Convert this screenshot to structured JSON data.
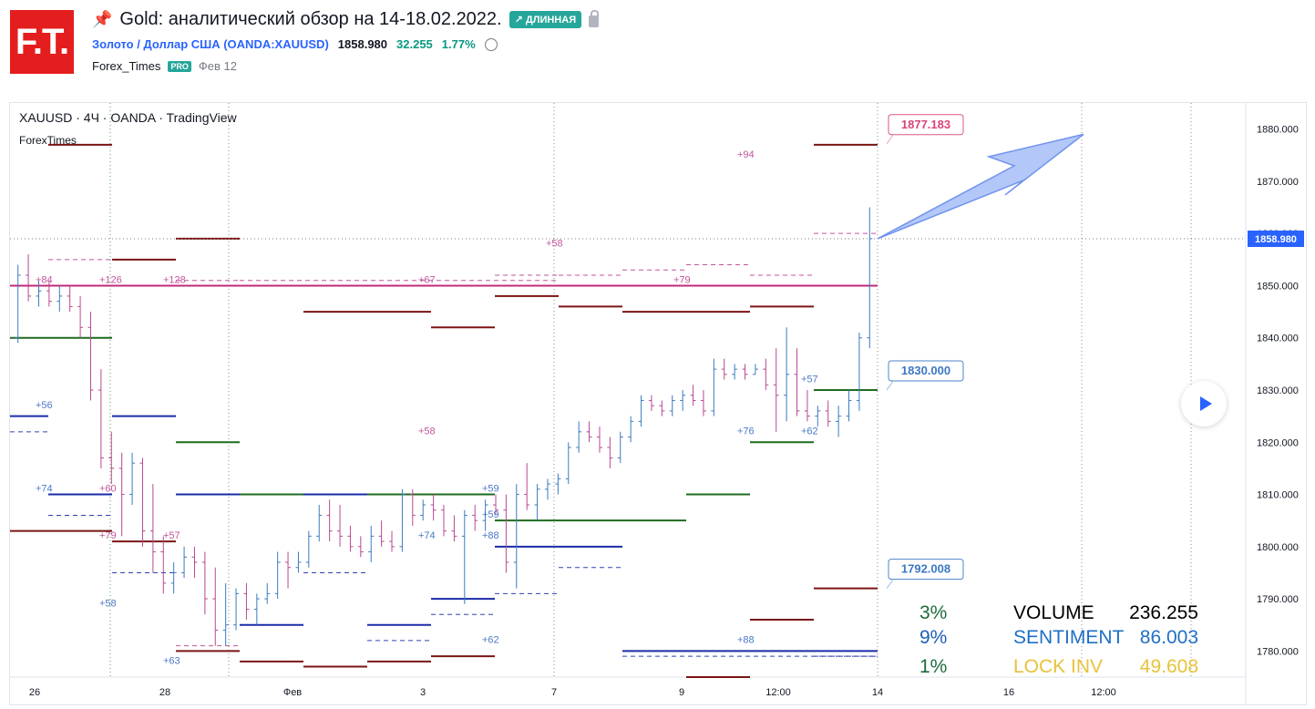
{
  "header": {
    "logo_text": "F.T.",
    "pin_icon": "pin-icon",
    "title": "Gold: аналитический обзор на 14-18.02.2022.",
    "direction_badge": "↗ ДЛИННАЯ",
    "symbol_name": "Золото / Доллар США (OANDA:XAUUSD)",
    "last_price": "1858.980",
    "change": "32.255",
    "change_pct": "1.77%",
    "author": "Forex_Times",
    "author_badge": "PRO",
    "publish_date": "Фев 12"
  },
  "chart_data": {
    "type": "candlestick",
    "legend_symbol": "XAUUSD · 4Ч · OANDA · TradingView",
    "legend_indicator": "ForexTimes",
    "y_range": [
      1775,
      1885
    ],
    "y_ticks": [
      "1880.000",
      "1870.000",
      "1860.000",
      "1850.000",
      "1840.000",
      "1830.000",
      "1820.000",
      "1810.000",
      "1800.000",
      "1790.000",
      "1780.000"
    ],
    "x_ticks": [
      "26",
      "28",
      "Фев",
      "3",
      "7",
      "9",
      "12:00",
      "14",
      "16",
      "12:00"
    ],
    "current_price_label": "1858.980",
    "current_price": 1858.98,
    "callouts": [
      {
        "label": "1877.183",
        "price": 1877.183,
        "color": "#d9447a"
      },
      {
        "label": "1830.000",
        "price": 1830.0,
        "color": "#3b78c4"
      },
      {
        "label": "1792.008",
        "price": 1792.008,
        "color": "#3b78c4"
      }
    ],
    "arrow": {
      "direction": "up",
      "from_price": 1859,
      "to_price": 1879
    },
    "candles": [
      {
        "o": 1840,
        "h": 1854,
        "l": 1839,
        "c": 1852
      },
      {
        "o": 1852,
        "h": 1856,
        "l": 1847,
        "c": 1848
      },
      {
        "o": 1848,
        "h": 1851,
        "l": 1846,
        "c": 1849
      },
      {
        "o": 1849,
        "h": 1851,
        "l": 1846,
        "c": 1847
      },
      {
        "o": 1847,
        "h": 1850,
        "l": 1845,
        "c": 1848
      },
      {
        "o": 1848,
        "h": 1850,
        "l": 1845,
        "c": 1846
      },
      {
        "o": 1846,
        "h": 1848,
        "l": 1840,
        "c": 1842
      },
      {
        "o": 1842,
        "h": 1845,
        "l": 1828,
        "c": 1830
      },
      {
        "o": 1830,
        "h": 1834,
        "l": 1815,
        "c": 1817
      },
      {
        "o": 1817,
        "h": 1822,
        "l": 1812,
        "c": 1815
      },
      {
        "o": 1815,
        "h": 1818,
        "l": 1802,
        "c": 1810
      },
      {
        "o": 1810,
        "h": 1818,
        "l": 1808,
        "c": 1816
      },
      {
        "o": 1816,
        "h": 1817,
        "l": 1800,
        "c": 1803
      },
      {
        "o": 1803,
        "h": 1812,
        "l": 1795,
        "c": 1799
      },
      {
        "o": 1799,
        "h": 1802,
        "l": 1791,
        "c": 1793
      },
      {
        "o": 1793,
        "h": 1797,
        "l": 1791,
        "c": 1795
      },
      {
        "o": 1795,
        "h": 1800,
        "l": 1794,
        "c": 1798
      },
      {
        "o": 1798,
        "h": 1800,
        "l": 1794,
        "c": 1797
      },
      {
        "o": 1797,
        "h": 1799,
        "l": 1787,
        "c": 1790
      },
      {
        "o": 1790,
        "h": 1796,
        "l": 1781,
        "c": 1784
      },
      {
        "o": 1784,
        "h": 1793,
        "l": 1781,
        "c": 1785
      },
      {
        "o": 1785,
        "h": 1792,
        "l": 1784,
        "c": 1791
      },
      {
        "o": 1791,
        "h": 1793,
        "l": 1786,
        "c": 1788
      },
      {
        "o": 1788,
        "h": 1791,
        "l": 1785,
        "c": 1790
      },
      {
        "o": 1790,
        "h": 1793,
        "l": 1789,
        "c": 1791
      },
      {
        "o": 1791,
        "h": 1799,
        "l": 1790,
        "c": 1797
      },
      {
        "o": 1797,
        "h": 1799,
        "l": 1792,
        "c": 1796
      },
      {
        "o": 1796,
        "h": 1799,
        "l": 1795,
        "c": 1797
      },
      {
        "o": 1797,
        "h": 1803,
        "l": 1796,
        "c": 1802
      },
      {
        "o": 1802,
        "h": 1808,
        "l": 1801,
        "c": 1806
      },
      {
        "o": 1806,
        "h": 1809,
        "l": 1801,
        "c": 1803
      },
      {
        "o": 1803,
        "h": 1808,
        "l": 1800,
        "c": 1802
      },
      {
        "o": 1802,
        "h": 1804,
        "l": 1799,
        "c": 1800
      },
      {
        "o": 1800,
        "h": 1802,
        "l": 1798,
        "c": 1799
      },
      {
        "o": 1799,
        "h": 1804,
        "l": 1797,
        "c": 1802
      },
      {
        "o": 1802,
        "h": 1805,
        "l": 1800,
        "c": 1801
      },
      {
        "o": 1801,
        "h": 1803,
        "l": 1799,
        "c": 1800
      },
      {
        "o": 1800,
        "h": 1811,
        "l": 1799,
        "c": 1810
      },
      {
        "o": 1810,
        "h": 1811,
        "l": 1804,
        "c": 1806
      },
      {
        "o": 1806,
        "h": 1809,
        "l": 1805,
        "c": 1808
      },
      {
        "o": 1808,
        "h": 1810,
        "l": 1805,
        "c": 1807
      },
      {
        "o": 1807,
        "h": 1808,
        "l": 1802,
        "c": 1803
      },
      {
        "o": 1803,
        "h": 1806,
        "l": 1801,
        "c": 1802
      },
      {
        "o": 1802,
        "h": 1807,
        "l": 1789,
        "c": 1806
      },
      {
        "o": 1806,
        "h": 1808,
        "l": 1803,
        "c": 1805
      },
      {
        "o": 1805,
        "h": 1809,
        "l": 1803,
        "c": 1808
      },
      {
        "o": 1808,
        "h": 1810,
        "l": 1806,
        "c": 1807
      },
      {
        "o": 1807,
        "h": 1810,
        "l": 1795,
        "c": 1797
      },
      {
        "o": 1797,
        "h": 1812,
        "l": 1792,
        "c": 1810
      },
      {
        "o": 1810,
        "h": 1816,
        "l": 1807,
        "c": 1808
      },
      {
        "o": 1808,
        "h": 1812,
        "l": 1805,
        "c": 1811
      },
      {
        "o": 1811,
        "h": 1813,
        "l": 1809,
        "c": 1812
      },
      {
        "o": 1812,
        "h": 1814,
        "l": 1810,
        "c": 1813
      },
      {
        "o": 1813,
        "h": 1820,
        "l": 1812,
        "c": 1819
      },
      {
        "o": 1819,
        "h": 1824,
        "l": 1818,
        "c": 1822
      },
      {
        "o": 1822,
        "h": 1824,
        "l": 1820,
        "c": 1821
      },
      {
        "o": 1821,
        "h": 1823,
        "l": 1818,
        "c": 1819
      },
      {
        "o": 1819,
        "h": 1821,
        "l": 1815,
        "c": 1817
      },
      {
        "o": 1817,
        "h": 1822,
        "l": 1816,
        "c": 1821
      },
      {
        "o": 1821,
        "h": 1825,
        "l": 1820,
        "c": 1824
      },
      {
        "o": 1824,
        "h": 1829,
        "l": 1823,
        "c": 1828
      },
      {
        "o": 1828,
        "h": 1829,
        "l": 1826,
        "c": 1827
      },
      {
        "o": 1827,
        "h": 1828,
        "l": 1825,
        "c": 1826
      },
      {
        "o": 1826,
        "h": 1829,
        "l": 1825,
        "c": 1828
      },
      {
        "o": 1828,
        "h": 1830,
        "l": 1826,
        "c": 1829
      },
      {
        "o": 1829,
        "h": 1831,
        "l": 1827,
        "c": 1828
      },
      {
        "o": 1828,
        "h": 1830,
        "l": 1825,
        "c": 1826
      },
      {
        "o": 1826,
        "h": 1836,
        "l": 1825,
        "c": 1834
      },
      {
        "o": 1834,
        "h": 1836,
        "l": 1832,
        "c": 1833
      },
      {
        "o": 1833,
        "h": 1835,
        "l": 1832,
        "c": 1834
      },
      {
        "o": 1834,
        "h": 1835,
        "l": 1832,
        "c": 1833
      },
      {
        "o": 1833,
        "h": 1835,
        "l": 1833,
        "c": 1834
      },
      {
        "o": 1834,
        "h": 1836,
        "l": 1830,
        "c": 1831
      },
      {
        "o": 1831,
        "h": 1838,
        "l": 1822,
        "c": 1829
      },
      {
        "o": 1829,
        "h": 1842,
        "l": 1824,
        "c": 1833
      },
      {
        "o": 1833,
        "h": 1838,
        "l": 1825,
        "c": 1826
      },
      {
        "o": 1826,
        "h": 1830,
        "l": 1824,
        "c": 1825
      },
      {
        "o": 1825,
        "h": 1827,
        "l": 1823,
        "c": 1826
      },
      {
        "o": 1826,
        "h": 1828,
        "l": 1823,
        "c": 1824
      },
      {
        "o": 1824,
        "h": 1827,
        "l": 1821,
        "c": 1825
      },
      {
        "o": 1825,
        "h": 1830,
        "l": 1824,
        "c": 1828
      },
      {
        "o": 1828,
        "h": 1841,
        "l": 1826,
        "c": 1840
      },
      {
        "o": 1840,
        "h": 1865,
        "l": 1838,
        "c": 1859
      }
    ],
    "level_lines": [
      {
        "price": 1877,
        "x0": 0.03,
        "x1": 0.08,
        "color": "#7b1414"
      },
      {
        "price": 1855,
        "x0": 0.03,
        "x1": 0.13,
        "color": "#c2549b",
        "dashed": true
      },
      {
        "price": 1855,
        "x0": 0.08,
        "x1": 0.13,
        "color": "#7b1414"
      },
      {
        "price": 1859,
        "x0": 0.13,
        "x1": 0.18,
        "color": "#7b1414"
      },
      {
        "price": 1850,
        "x0": 0.0,
        "x1": 0.18,
        "color": "#c2287a"
      },
      {
        "price": 1851,
        "x0": 0.13,
        "x1": 0.18,
        "color": "#c2549b",
        "dashed": true
      },
      {
        "price": 1840,
        "x0": 0.0,
        "x1": 0.08,
        "color": "#1e6b1e"
      },
      {
        "price": 1825,
        "x0": 0.0,
        "x1": 0.03,
        "color": "#1a2ba8"
      },
      {
        "price": 1822,
        "x0": 0.0,
        "x1": 0.03,
        "color": "#3040b0",
        "dashed": true
      },
      {
        "price": 1825,
        "x0": 0.08,
        "x1": 0.13,
        "color": "#1a2ba8"
      },
      {
        "price": 1820,
        "x0": 0.13,
        "x1": 0.18,
        "color": "#1e6b1e"
      },
      {
        "price": 1810,
        "x0": 0.03,
        "x1": 0.08,
        "color": "#1a2ba8"
      },
      {
        "price": 1806,
        "x0": 0.03,
        "x1": 0.08,
        "color": "#3040b0",
        "dashed": true
      },
      {
        "price": 1803,
        "x0": 0.0,
        "x1": 0.08,
        "color": "#7b1414"
      },
      {
        "price": 1801,
        "x0": 0.08,
        "x1": 0.13,
        "color": "#7b1414"
      },
      {
        "price": 1795,
        "x0": 0.08,
        "x1": 0.13,
        "color": "#3040b0",
        "dashed": true
      },
      {
        "price": 1810,
        "x0": 0.13,
        "x1": 0.18,
        "color": "#1a2ba8"
      },
      {
        "price": 1781,
        "x0": 0.13,
        "x1": 0.18,
        "color": "#c2549b",
        "dashed": true
      },
      {
        "price": 1780,
        "x0": 0.13,
        "x1": 0.18,
        "color": "#7b1414"
      },
      {
        "price": 1851,
        "x0": 0.18,
        "x1": 0.43,
        "color": "#c2549b",
        "dashed": true
      },
      {
        "price": 1850,
        "x0": 0.18,
        "x1": 0.43,
        "color": "#c2287a"
      },
      {
        "price": 1845,
        "x0": 0.23,
        "x1": 0.33,
        "color": "#7b1414"
      },
      {
        "price": 1842,
        "x0": 0.33,
        "x1": 0.38,
        "color": "#7b1414"
      },
      {
        "price": 1810,
        "x0": 0.18,
        "x1": 0.38,
        "color": "#1e6b1e"
      },
      {
        "price": 1810,
        "x0": 0.23,
        "x1": 0.28,
        "color": "#1a2ba8"
      },
      {
        "price": 1810,
        "x0": 0.28,
        "x1": 0.38,
        "color": "#1e6b1e"
      },
      {
        "price": 1795,
        "x0": 0.23,
        "x1": 0.28,
        "color": "#3040b0",
        "dashed": true
      },
      {
        "price": 1785,
        "x0": 0.18,
        "x1": 0.23,
        "color": "#1a2ba8"
      },
      {
        "price": 1785,
        "x0": 0.28,
        "x1": 0.33,
        "color": "#1a2ba8"
      },
      {
        "price": 1782,
        "x0": 0.28,
        "x1": 0.33,
        "color": "#3040b0",
        "dashed": true
      },
      {
        "price": 1790,
        "x0": 0.33,
        "x1": 0.38,
        "color": "#1a2ba8"
      },
      {
        "price": 1787,
        "x0": 0.33,
        "x1": 0.38,
        "color": "#3040b0",
        "dashed": true
      },
      {
        "price": 1778,
        "x0": 0.18,
        "x1": 0.23,
        "color": "#7b1414"
      },
      {
        "price": 1777,
        "x0": 0.23,
        "x1": 0.28,
        "color": "#7b1414"
      },
      {
        "price": 1778,
        "x0": 0.28,
        "x1": 0.33,
        "color": "#7b1414"
      },
      {
        "price": 1779,
        "x0": 0.33,
        "x1": 0.38,
        "color": "#7b1414"
      },
      {
        "price": 1852,
        "x0": 0.38,
        "x1": 0.43,
        "color": "#c2549b",
        "dashed": true
      },
      {
        "price": 1848,
        "x0": 0.38,
        "x1": 0.43,
        "color": "#7b1414"
      },
      {
        "price": 1805,
        "x0": 0.38,
        "x1": 0.43,
        "color": "#1e6b1e"
      },
      {
        "price": 1800,
        "x0": 0.38,
        "x1": 0.43,
        "color": "#1a2ba8"
      },
      {
        "price": 1791,
        "x0": 0.38,
        "x1": 0.43,
        "color": "#3040b0",
        "dashed": true
      },
      {
        "price": 1850,
        "x0": 0.43,
        "x1": 0.68,
        "color": "#c2287a"
      },
      {
        "price": 1852,
        "x0": 0.43,
        "x1": 0.48,
        "color": "#c2549b",
        "dashed": true
      },
      {
        "price": 1853,
        "x0": 0.48,
        "x1": 0.53,
        "color": "#c2549b",
        "dashed": true
      },
      {
        "price": 1854,
        "x0": 0.53,
        "x1": 0.58,
        "color": "#c2549b",
        "dashed": true
      },
      {
        "price": 1852,
        "x0": 0.58,
        "x1": 0.63,
        "color": "#c2549b",
        "dashed": true
      },
      {
        "price": 1846,
        "x0": 0.43,
        "x1": 0.48,
        "color": "#7b1414"
      },
      {
        "price": 1845,
        "x0": 0.48,
        "x1": 0.58,
        "color": "#7b1414"
      },
      {
        "price": 1846,
        "x0": 0.58,
        "x1": 0.63,
        "color": "#7b1414"
      },
      {
        "price": 1805,
        "x0": 0.43,
        "x1": 0.53,
        "color": "#1e6b1e"
      },
      {
        "price": 1810,
        "x0": 0.53,
        "x1": 0.58,
        "color": "#1e6b1e"
      },
      {
        "price": 1800,
        "x0": 0.43,
        "x1": 0.48,
        "color": "#1a2ba8"
      },
      {
        "price": 1796,
        "x0": 0.43,
        "x1": 0.48,
        "color": "#3040b0",
        "dashed": true
      },
      {
        "price": 1780,
        "x0": 0.48,
        "x1": 0.68,
        "color": "#1a2ba8"
      },
      {
        "price": 1779,
        "x0": 0.48,
        "x1": 0.68,
        "color": "#3040b0",
        "dashed": true
      },
      {
        "price": 1775,
        "x0": 0.53,
        "x1": 0.58,
        "color": "#7b1414"
      },
      {
        "price": 1786,
        "x0": 0.58,
        "x1": 0.63,
        "color": "#7b1414"
      },
      {
        "price": 1820,
        "x0": 0.58,
        "x1": 0.63,
        "color": "#1e6b1e"
      },
      {
        "price": 1830,
        "x0": 0.63,
        "x1": 0.68,
        "color": "#1e6b1e"
      },
      {
        "price": 1877,
        "x0": 0.63,
        "x1": 0.68,
        "color": "#7b1414"
      },
      {
        "price": 1860,
        "x0": 0.63,
        "x1": 0.68,
        "color": "#c2549b",
        "dashed": true
      },
      {
        "price": 1792,
        "x0": 0.63,
        "x1": 0.68,
        "color": "#7b1414"
      },
      {
        "price": 1779,
        "x0": 0.63,
        "x1": 0.68,
        "color": "#3040b0",
        "dashed": true
      }
    ],
    "annotations": [
      {
        "text": "+84",
        "x": 0.02,
        "price": 1850,
        "color": "#c2549b"
      },
      {
        "text": "+126",
        "x": 0.07,
        "price": 1850,
        "color": "#c2549b"
      },
      {
        "text": "+128",
        "x": 0.12,
        "price": 1850,
        "color": "#c2549b"
      },
      {
        "text": "+67",
        "x": 0.32,
        "price": 1850,
        "color": "#c2549b"
      },
      {
        "text": "+58",
        "x": 0.42,
        "price": 1857,
        "color": "#c2549b"
      },
      {
        "text": "+79",
        "x": 0.52,
        "price": 1850,
        "color": "#c2549b"
      },
      {
        "text": "+94",
        "x": 0.57,
        "price": 1874,
        "color": "#c2549b"
      },
      {
        "text": "+58",
        "x": 0.32,
        "price": 1821,
        "color": "#c2549b"
      },
      {
        "text": "+60",
        "x": 0.07,
        "price": 1810,
        "color": "#c2549b"
      },
      {
        "text": "+79",
        "x": 0.07,
        "price": 1801,
        "color": "#c2549b"
      },
      {
        "text": "+57",
        "x": 0.12,
        "price": 1801,
        "color": "#c2549b"
      },
      {
        "text": "+56",
        "x": 0.02,
        "price": 1826,
        "color": "#4a78c8"
      },
      {
        "text": "+74",
        "x": 0.02,
        "price": 1810,
        "color": "#4a78c8"
      },
      {
        "text": "+58",
        "x": 0.07,
        "price": 1788,
        "color": "#4a78c8"
      },
      {
        "text": "+63",
        "x": 0.12,
        "price": 1777,
        "color": "#4a78c8"
      },
      {
        "text": "+59",
        "x": 0.37,
        "price": 1810,
        "color": "#4a78c8"
      },
      {
        "text": "+59",
        "x": 0.37,
        "price": 1805,
        "color": "#4a78c8"
      },
      {
        "text": "+74",
        "x": 0.32,
        "price": 1801,
        "color": "#4a78c8"
      },
      {
        "text": "+88",
        "x": 0.37,
        "price": 1801,
        "color": "#4a78c8"
      },
      {
        "text": "+62",
        "x": 0.37,
        "price": 1781,
        "color": "#4a78c8"
      },
      {
        "text": "+88",
        "x": 0.57,
        "price": 1781,
        "color": "#4a78c8"
      },
      {
        "text": "+57",
        "x": 0.62,
        "price": 1831,
        "color": "#4a78c8"
      },
      {
        "text": "+76",
        "x": 0.57,
        "price": 1821,
        "color": "#4a78c8"
      },
      {
        "text": "+62",
        "x": 0.62,
        "price": 1821,
        "color": "#4a78c8"
      }
    ],
    "stats": [
      {
        "pct": "3%",
        "label": "VOLUME",
        "value": "236.255",
        "pct_color": "#1e6b3e",
        "label_color": "#000000",
        "value_color": "#000000"
      },
      {
        "pct": "9%",
        "label": "SENTIMENT",
        "value": "86.003",
        "pct_color": "#1f5fb5",
        "label_color": "#1f6fc5",
        "value_color": "#1f6fc5"
      },
      {
        "pct": "1%",
        "label": "LOCK INV",
        "value": "49.608",
        "pct_color": "#1e6b3e",
        "label_color": "#e8c23a",
        "value_color": "#e8c23a"
      }
    ]
  },
  "colors": {
    "candle_up": "#3b7bbf",
    "candle_down": "#b9488f",
    "price_tag_bg": "#2962ff"
  }
}
